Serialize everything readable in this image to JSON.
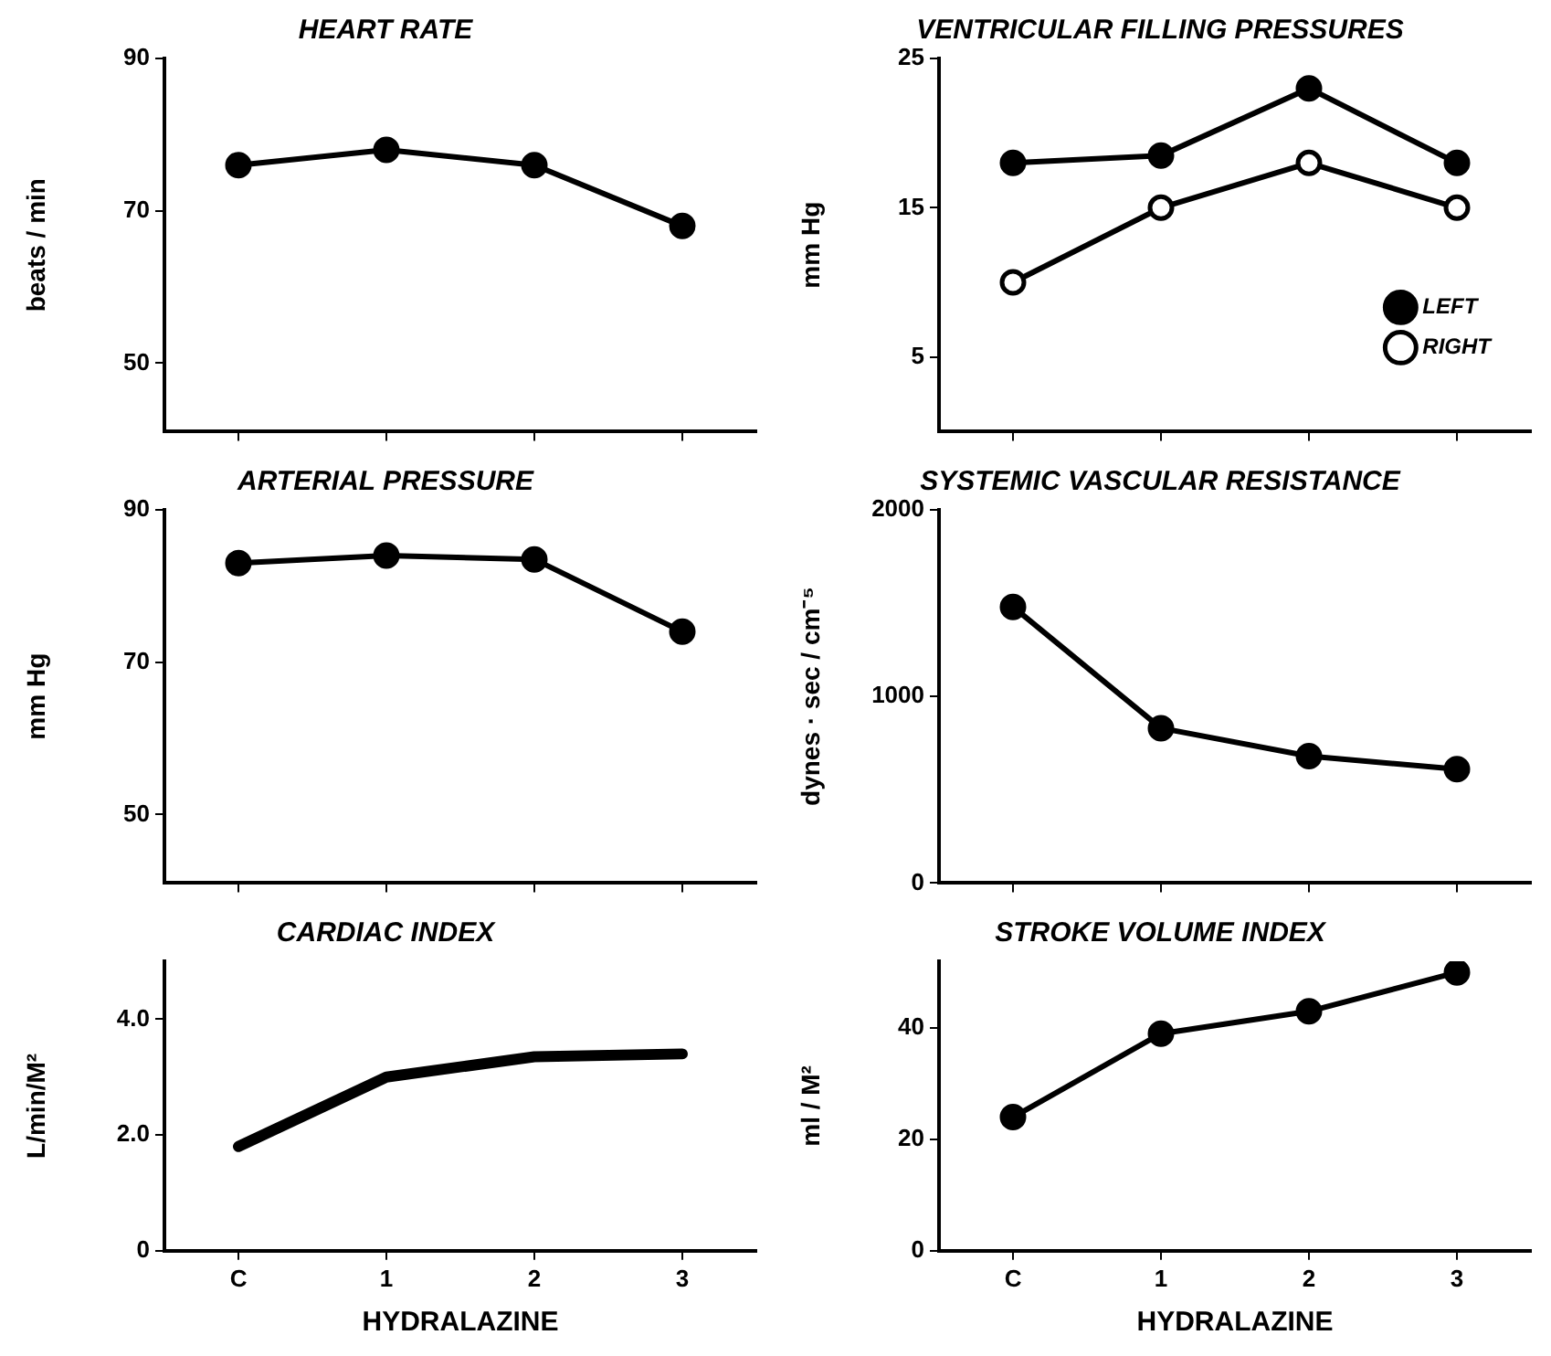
{
  "chart_data": [
    {
      "type": "line",
      "title": "HEART RATE",
      "ylabel": "beats / min",
      "categories": [
        null,
        null,
        null,
        null
      ],
      "values": [
        76,
        78,
        76,
        68
      ],
      "color": "#000000",
      "ylim": [
        41,
        90
      ],
      "yticks": [
        50,
        70,
        90
      ],
      "marker": "circle",
      "grid": false,
      "tick_labels": "y"
    },
    {
      "type": "line",
      "title": "VENTRICULAR FILLING PRESSURES",
      "ylabel": "mm Hg",
      "categories": [
        null,
        null,
        null,
        null
      ],
      "series": [
        {
          "name": "LEFT",
          "color": "#000000",
          "values": [
            18,
            18.5,
            23,
            18
          ]
        },
        {
          "name": "RIGHT",
          "color": "#000000",
          "colors": [
            "#ffffff",
            "#ffffff",
            "#ffffff",
            "#ffffff"
          ],
          "values": [
            10,
            15,
            18,
            15
          ]
        }
      ],
      "ylim": [
        0,
        25
      ],
      "yticks": [
        5,
        15,
        25
      ],
      "marker": "circle",
      "grid": false,
      "legend": "bottom right",
      "tick_labels": "y"
    },
    {
      "type": "line",
      "title": "ARTERIAL PRESSURE",
      "ylabel": "mm Hg",
      "categories": [
        null,
        null,
        null,
        null
      ],
      "values": [
        83,
        84,
        83.5,
        74
      ],
      "color": "#000000",
      "ylim": [
        41,
        90
      ],
      "yticks": [
        50,
        70,
        90
      ],
      "marker": "circle",
      "grid": false,
      "tick_labels": "y"
    },
    {
      "type": "line",
      "title": "SYSTEMIC VASCULAR RESISTANCE",
      "ylabel": "dynes · sec / cm⁻⁵",
      "categories": [
        null,
        null,
        null,
        null
      ],
      "values": [
        1480,
        830,
        680,
        610
      ],
      "color": "#000000",
      "ylim": [
        0,
        2000
      ],
      "yticks": [
        0,
        1000,
        2000
      ],
      "marker": "circle",
      "grid": false,
      "tick_labels": "y"
    },
    {
      "type": "line",
      "title": "CARDIAC INDEX",
      "ylabel": "L/min/M²",
      "xlabel": "HYDRALAZINE",
      "categories": [
        "C",
        "1",
        "2",
        "3"
      ],
      "values": [
        1.8,
        3.0,
        3.35,
        3.4
      ],
      "color": "#000000",
      "ylim": [
        0,
        5
      ],
      "yticks": [
        0,
        {
          "value": 2,
          "label": "2.0"
        },
        {
          "value": 4,
          "label": "4.0"
        }
      ],
      "marker": "none",
      "grid": false
    },
    {
      "type": "line",
      "title": "STROKE VOLUME INDEX",
      "ylabel": "ml / M²",
      "xlabel": "HYDRALAZINE",
      "categories": [
        "C",
        "1",
        "2",
        "3"
      ],
      "values": [
        24,
        39,
        43,
        50
      ],
      "color": "#000000",
      "ylim": [
        0,
        52
      ],
      "yticks": [
        0,
        20,
        40
      ],
      "marker": "circle",
      "grid": false
    }
  ]
}
